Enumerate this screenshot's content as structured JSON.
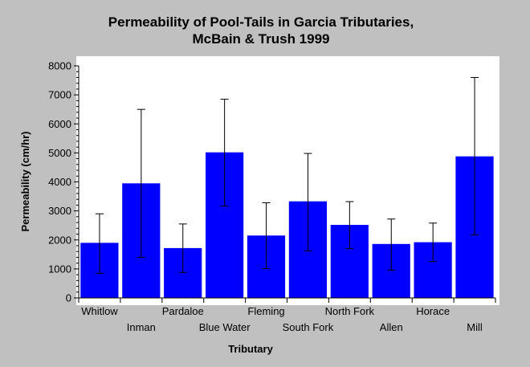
{
  "colors": {
    "background": "#c0c0c0",
    "plot_area": "#ffffff",
    "bar": "#0000ff",
    "error_bar": "#000000"
  },
  "chart_data": {
    "type": "bar",
    "title": "Permeability of Pool-Tails in Garcia Tributaries,",
    "subtitle": "McBain & Trush 1999",
    "xlabel": "Tributary",
    "ylabel": "Permeability (cm/hr)",
    "ylim": [
      0,
      8000
    ],
    "yticks": [
      0,
      1000,
      2000,
      3000,
      4000,
      5000,
      6000,
      7000,
      8000
    ],
    "grid": false,
    "categories": [
      "Whitlow",
      "Inman",
      "Pardaloe",
      "Blue Water",
      "Fleming",
      "South Fork",
      "North Fork",
      "Allen",
      "Horace",
      "Mill"
    ],
    "values": [
      1900,
      3950,
      1720,
      5020,
      2150,
      3330,
      2520,
      1860,
      1920,
      4880
    ],
    "error_low": [
      850,
      1400,
      880,
      3170,
      1010,
      1620,
      1700,
      960,
      1260,
      2170
    ],
    "error_high": [
      2900,
      6500,
      2550,
      6850,
      3280,
      4980,
      3320,
      2720,
      2580,
      7600
    ]
  }
}
